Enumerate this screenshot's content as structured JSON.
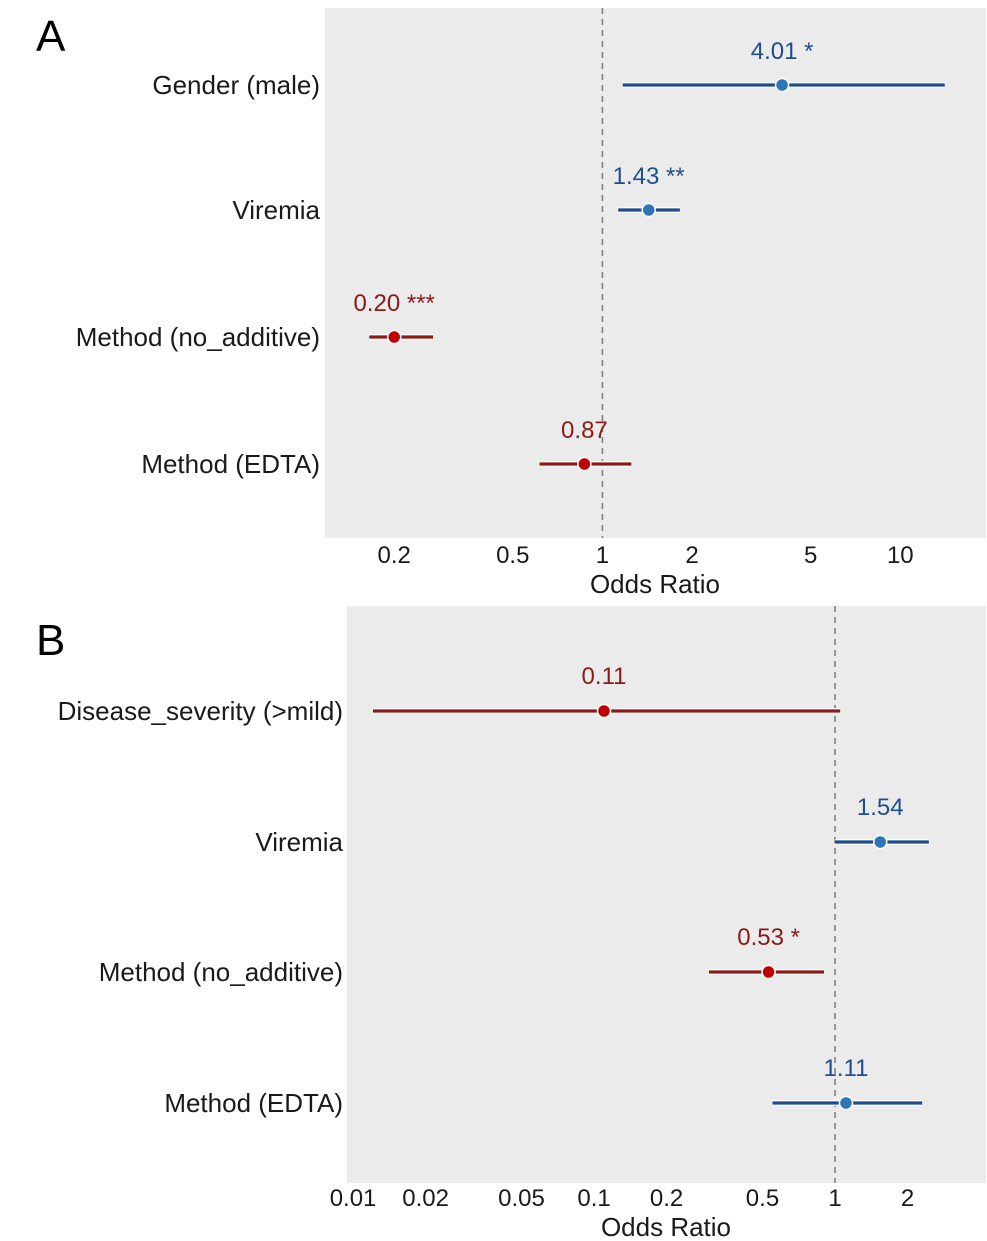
{
  "colors": {
    "panel_bg": "#ebebeb",
    "positive": "#1f4e8c",
    "positive_point": "#2e75b6",
    "negative": "#8b1a1a",
    "negative_point": "#c00000",
    "reference_line": "#808080"
  },
  "chart_data": [
    {
      "panel_label": "A",
      "type": "forest",
      "scale": "log",
      "xlabel": "Odds Ratio",
      "ticks": [
        0.2,
        0.5,
        1,
        2,
        5,
        10
      ],
      "tick_labels": [
        "0.2",
        "0.5",
        "1",
        "2",
        "5",
        "10"
      ],
      "xlim": [
        0.15,
        15.5
      ],
      "reference": 1,
      "grid": false,
      "rows": [
        {
          "label": "Gender (male)",
          "estimate": 4.01,
          "ci_low": 1.17,
          "ci_high": 14.1,
          "annotation": "4.01 *",
          "direction": "positive"
        },
        {
          "label": "Viremia",
          "estimate": 1.43,
          "ci_low": 1.13,
          "ci_high": 1.82,
          "annotation": "1.43 **",
          "direction": "positive"
        },
        {
          "label": "Method (no_additive)",
          "estimate": 0.2,
          "ci_low": 0.165,
          "ci_high": 0.27,
          "annotation": "0.20 ***",
          "direction": "negative"
        },
        {
          "label": "Method (EDTA)",
          "estimate": 0.87,
          "ci_low": 0.615,
          "ci_high": 1.25,
          "annotation": "0.87",
          "direction": "negative"
        }
      ]
    },
    {
      "panel_label": "B",
      "type": "forest",
      "scale": "log",
      "xlabel": "Odds Ratio",
      "ticks": [
        0.01,
        0.02,
        0.05,
        0.1,
        0.2,
        0.5,
        1,
        2
      ],
      "tick_labels": [
        "0.01",
        "0.02",
        "0.05",
        "0.1",
        "0.2",
        "0.5",
        "1",
        "2"
      ],
      "xlim": [
        0.0099,
        3.3
      ],
      "reference": 1,
      "grid": false,
      "rows": [
        {
          "label": "Disease_severity (>mild)",
          "estimate": 0.11,
          "ci_low": 0.0121,
          "ci_high": 1.05,
          "annotation": "0.11",
          "direction": "negative"
        },
        {
          "label": "Viremia",
          "estimate": 1.54,
          "ci_low": 1.0,
          "ci_high": 2.45,
          "annotation": "1.54",
          "direction": "positive"
        },
        {
          "label": "Method (no_additive)",
          "estimate": 0.53,
          "ci_low": 0.3,
          "ci_high": 0.9,
          "annotation": "0.53 *",
          "direction": "negative"
        },
        {
          "label": "Method (EDTA)",
          "estimate": 1.11,
          "ci_low": 0.55,
          "ci_high": 2.3,
          "annotation": "1.11",
          "direction": "positive"
        }
      ]
    }
  ]
}
